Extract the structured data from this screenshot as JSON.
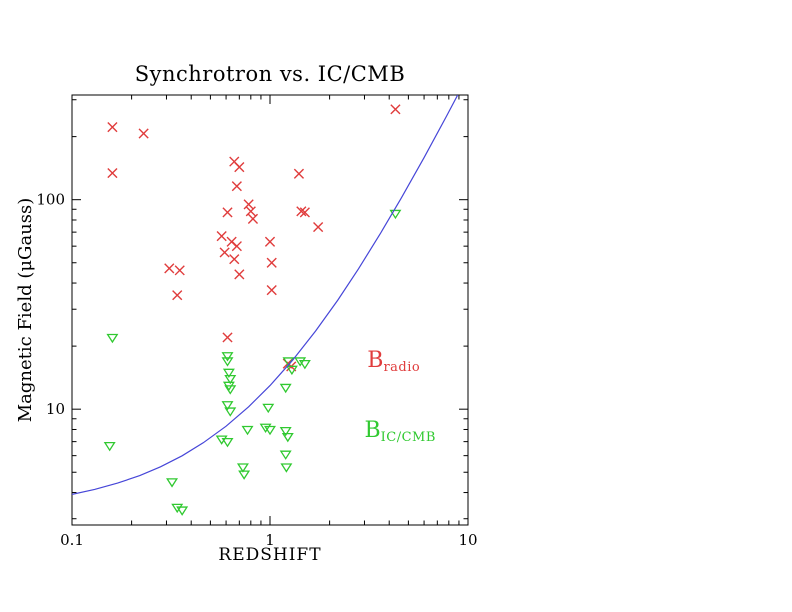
{
  "page": {
    "background": "#ffffff"
  },
  "chart_data": {
    "type": "scatter",
    "title": "Synchrotron vs. IC/CMB",
    "xlabel": "REDSHIFT",
    "ylabel": "Magnetic Field (μGauss)",
    "xscale": "log",
    "yscale": "log",
    "xlim": [
      0.1,
      10
    ],
    "ylim": [
      2.8,
      316
    ],
    "grid": false,
    "legend_position": "inside-right",
    "frame_color": "#000000",
    "x_ticks": [
      {
        "value": 0.1,
        "label": "0.1"
      },
      {
        "value": 1,
        "label": "1"
      },
      {
        "value": 10,
        "label": "10"
      }
    ],
    "y_ticks": [
      {
        "value": 10,
        "label": "10"
      },
      {
        "value": 100,
        "label": "100"
      }
    ],
    "series": [
      {
        "name": "B_radio",
        "marker": "x",
        "color": "#e03c3c",
        "points": [
          [
            0.16,
            222
          ],
          [
            0.23,
            207
          ],
          [
            0.16,
            134
          ],
          [
            0.66,
            152
          ],
          [
            0.7,
            143
          ],
          [
            0.68,
            116
          ],
          [
            1.4,
            133
          ],
          [
            0.61,
            87
          ],
          [
            0.78,
            95
          ],
          [
            0.8,
            88
          ],
          [
            0.82,
            81
          ],
          [
            1.44,
            88
          ],
          [
            1.5,
            87
          ],
          [
            1.75,
            74
          ],
          [
            0.57,
            67
          ],
          [
            0.64,
            63
          ],
          [
            0.68,
            60
          ],
          [
            1.0,
            63
          ],
          [
            0.59,
            56
          ],
          [
            0.66,
            52
          ],
          [
            1.02,
            50
          ],
          [
            0.31,
            47
          ],
          [
            0.35,
            46
          ],
          [
            0.7,
            44
          ],
          [
            0.34,
            35
          ],
          [
            1.02,
            37
          ],
          [
            0.61,
            22
          ],
          [
            1.23,
            16.5
          ],
          [
            1.28,
            16
          ],
          [
            4.3,
            270
          ]
        ]
      },
      {
        "name": "B_IC/CMB",
        "marker": "triangle-down",
        "color": "#30c930",
        "points": [
          [
            0.16,
            22
          ],
          [
            0.155,
            6.7
          ],
          [
            0.32,
            4.5
          ],
          [
            0.34,
            3.4
          ],
          [
            0.36,
            3.3
          ],
          [
            0.61,
            18
          ],
          [
            0.61,
            17
          ],
          [
            0.62,
            15
          ],
          [
            0.63,
            14
          ],
          [
            0.62,
            13
          ],
          [
            0.63,
            12.5
          ],
          [
            0.61,
            10.5
          ],
          [
            0.63,
            9.8
          ],
          [
            0.57,
            7.2
          ],
          [
            0.61,
            7.0
          ],
          [
            0.77,
            8.0
          ],
          [
            0.73,
            5.3
          ],
          [
            0.74,
            4.9
          ],
          [
            0.98,
            10.2
          ],
          [
            0.95,
            8.2
          ],
          [
            1.0,
            8.0
          ],
          [
            1.24,
            17
          ],
          [
            1.29,
            15.5
          ],
          [
            1.42,
            17
          ],
          [
            1.5,
            16.5
          ],
          [
            1.2,
            12.7
          ],
          [
            1.2,
            7.9
          ],
          [
            1.23,
            7.4
          ],
          [
            1.2,
            6.1
          ],
          [
            1.21,
            5.3
          ],
          [
            4.3,
            86
          ]
        ]
      },
      {
        "name": "IC/CMB equality curve",
        "type": "line",
        "color": "#4646d8",
        "points": [
          [
            0.1,
            3.92
          ],
          [
            0.13,
            4.14
          ],
          [
            0.17,
            4.44
          ],
          [
            0.22,
            4.82
          ],
          [
            0.28,
            5.31
          ],
          [
            0.36,
            5.99
          ],
          [
            0.46,
            6.91
          ],
          [
            0.6,
            8.29
          ],
          [
            0.78,
            10.27
          ],
          [
            1.0,
            12.96
          ],
          [
            1.3,
            17.14
          ],
          [
            1.7,
            23.62
          ],
          [
            2.2,
            33.18
          ],
          [
            2.8,
            46.79
          ],
          [
            3.6,
            68.56
          ],
          [
            4.6,
            101.61
          ],
          [
            6.0,
            158.76
          ],
          [
            7.8,
            250.91
          ],
          [
            9.0,
            324.0
          ]
        ]
      }
    ],
    "annotations": [
      {
        "main": "B",
        "sub": "radio",
        "color": "#e03c3c",
        "x": 3.1,
        "y": 16.8
      },
      {
        "main": "B",
        "sub": "IC/CMB",
        "color": "#30c930",
        "x": 3.0,
        "y": 7.8
      }
    ]
  }
}
